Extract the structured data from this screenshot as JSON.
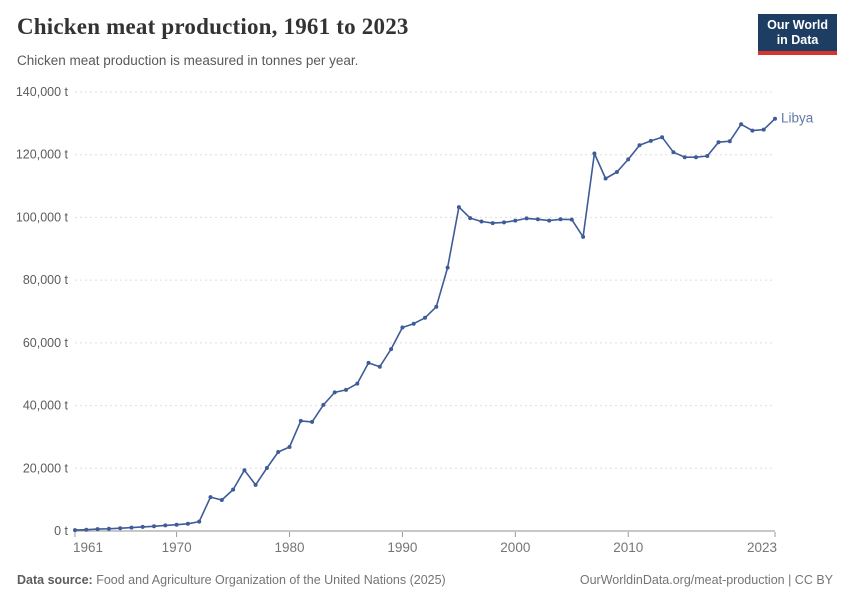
{
  "header": {
    "title": "Chicken meat production, 1961 to 2023",
    "subtitle": "Chicken meat production is measured in tonnes per year.",
    "logo": {
      "line1": "Our World",
      "line2": "in Data",
      "bg_color": "#1d3d63",
      "bar_color": "#d8352f"
    }
  },
  "chart_data": {
    "type": "line",
    "title": "Chicken meat production, 1961 to 2023",
    "unit": "t",
    "xlabel": "",
    "ylabel": "tonnes per year",
    "xlim": [
      1961,
      2023
    ],
    "ylim": [
      0,
      140000
    ],
    "grid": "horizontal-dashed",
    "legend_position": "end-of-line",
    "x_ticks": [
      1961,
      1970,
      1980,
      1990,
      2000,
      2010,
      2023
    ],
    "y_ticks": [
      0,
      20000,
      40000,
      60000,
      80000,
      100000,
      120000,
      140000
    ],
    "series": [
      {
        "name": "Libya",
        "color": "#3e5c97",
        "label_color": "#6079a8",
        "x": [
          1961,
          1962,
          1963,
          1964,
          1965,
          1966,
          1967,
          1968,
          1969,
          1970,
          1971,
          1972,
          1973,
          1974,
          1975,
          1976,
          1977,
          1978,
          1979,
          1980,
          1981,
          1982,
          1983,
          1984,
          1985,
          1986,
          1987,
          1988,
          1989,
          1990,
          1991,
          1992,
          1993,
          1994,
          1995,
          1996,
          1997,
          1998,
          1999,
          2000,
          2001,
          2002,
          2003,
          2004,
          2005,
          2006,
          2007,
          2008,
          2009,
          2010,
          2011,
          2012,
          2013,
          2014,
          2015,
          2016,
          2017,
          2018,
          2019,
          2020,
          2021,
          2022,
          2023
        ],
        "values": [
          300,
          400,
          600,
          700,
          900,
          1100,
          1300,
          1500,
          1800,
          2000,
          2300,
          3000,
          10800,
          9900,
          13200,
          19400,
          14700,
          20100,
          25200,
          26800,
          35100,
          34800,
          40200,
          44200,
          45000,
          47000,
          53600,
          52400,
          58000,
          64900,
          66100,
          68000,
          71500,
          84000,
          103300,
          99800,
          98700,
          98200,
          98400,
          99000,
          99700,
          99400,
          99000,
          99400,
          99300,
          93800,
          120400,
          112400,
          114500,
          118500,
          123000,
          124400,
          125600,
          120800,
          119200,
          119200,
          119600,
          124000,
          124300,
          129700,
          127700,
          128000,
          131500
        ]
      }
    ],
    "style": {
      "gridline_color": "#dedede",
      "axis_line_color": "#8f8f8f",
      "tick_color": "#999999"
    }
  },
  "footer": {
    "source_label": "Data source:",
    "source_text": " Food and Agriculture Organization of the United Nations (2025)",
    "credit": "OurWorldinData.org/meat-production | CC BY"
  }
}
